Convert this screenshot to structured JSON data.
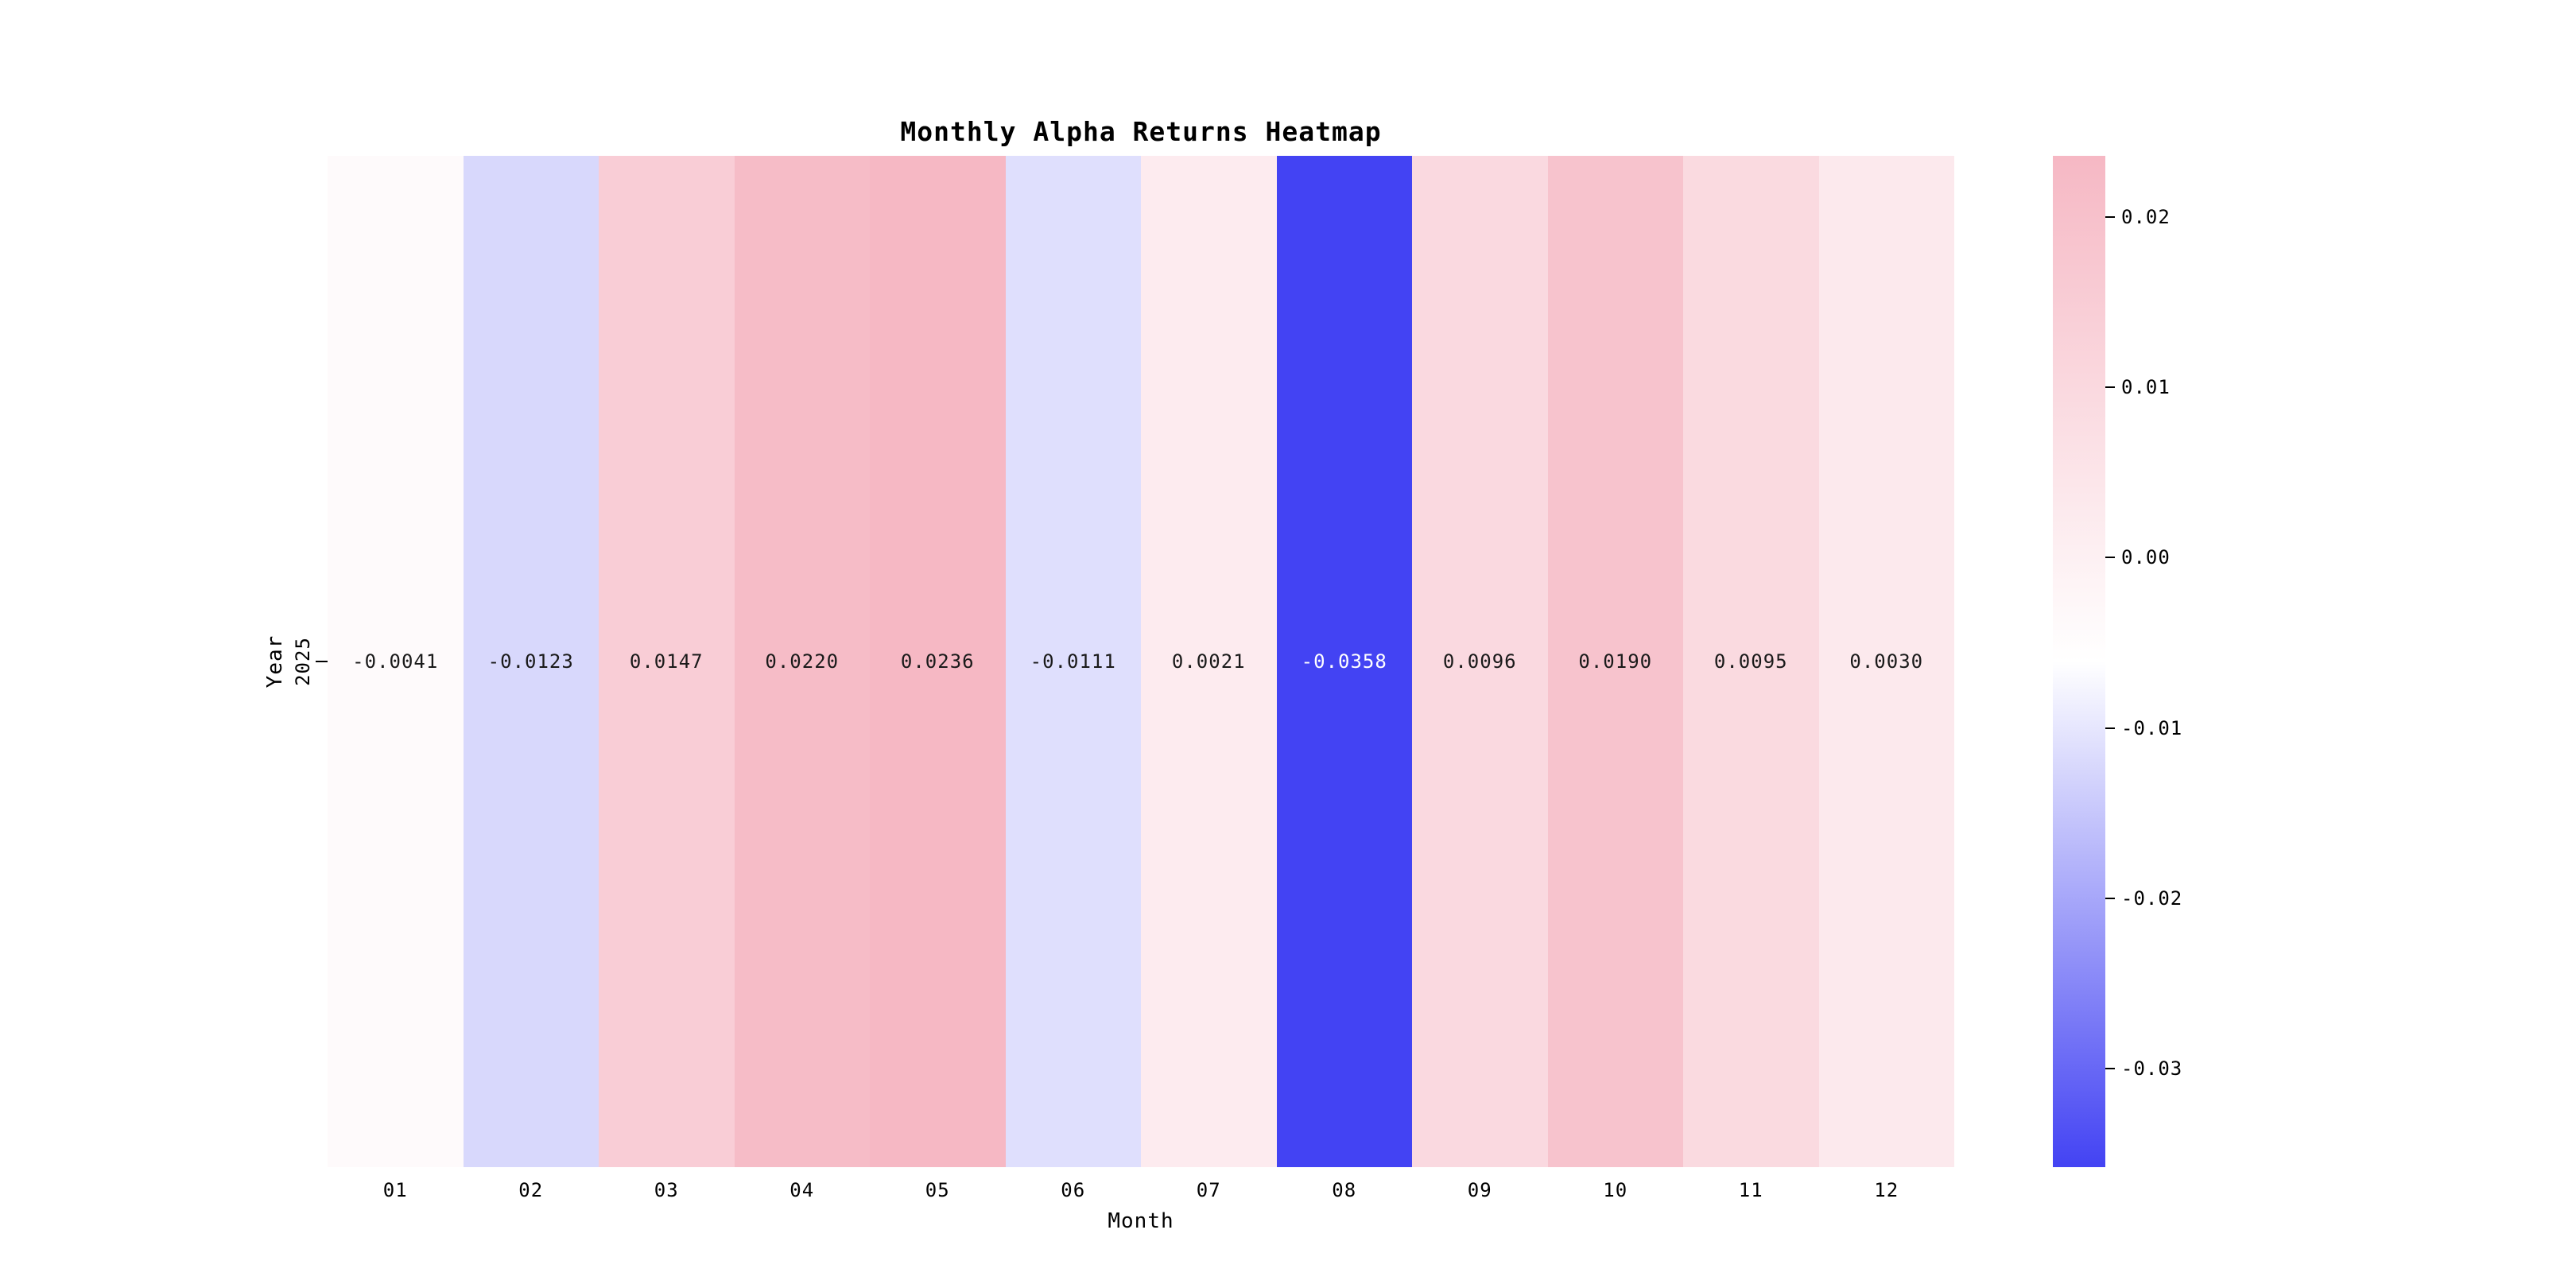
{
  "chart_data": {
    "type": "heatmap",
    "title": "Monthly Alpha Returns Heatmap",
    "xlabel": "Month",
    "ylabel": "Year",
    "rows": [
      "2025"
    ],
    "columns": [
      "01",
      "02",
      "03",
      "04",
      "05",
      "06",
      "07",
      "08",
      "09",
      "10",
      "11",
      "12"
    ],
    "values": [
      [
        -0.0041,
        -0.0123,
        0.0147,
        0.022,
        0.0236,
        -0.0111,
        0.0021,
        -0.0358,
        0.0096,
        0.019,
        0.0095,
        0.003
      ]
    ],
    "cell_labels": [
      [
        "-0.0041",
        "-0.0123",
        "0.0147",
        "0.0220",
        "0.0236",
        "-0.0111",
        "0.0021",
        "-0.0358",
        "0.0096",
        "0.0190",
        "0.0095",
        "0.0030"
      ]
    ],
    "vmin": -0.0358,
    "vmax": 0.0236,
    "colormap": {
      "low": "#4343f3",
      "mid": "#ffffff",
      "high": "#f6b8c4"
    },
    "colorbar": {
      "tick_values": [
        0.02,
        0.01,
        0.0,
        -0.01,
        -0.02,
        -0.03
      ],
      "tick_labels": [
        "0.02",
        "0.01",
        "0.00",
        "-0.01",
        "-0.02",
        "-0.03"
      ],
      "position": "right"
    },
    "grid": false,
    "legend": "colorbar"
  }
}
